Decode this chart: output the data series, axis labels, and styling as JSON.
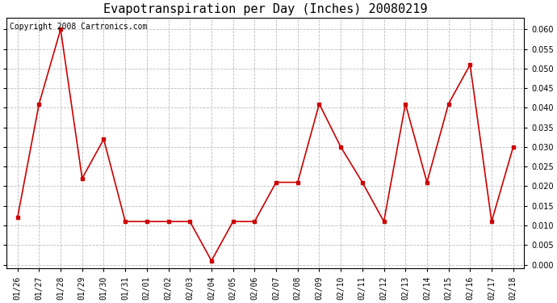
{
  "title": "Evapotranspiration per Day (Inches) 20080219",
  "copyright_text": "Copyright 2008 Cartronics.com",
  "labels": [
    "01/26",
    "01/27",
    "01/28",
    "01/29",
    "01/30",
    "01/31",
    "02/01",
    "02/02",
    "02/03",
    "02/04",
    "02/05",
    "02/06",
    "02/07",
    "02/08",
    "02/09",
    "02/10",
    "02/11",
    "02/12",
    "02/13",
    "02/14",
    "02/15",
    "02/16",
    "02/17",
    "02/18"
  ],
  "values": [
    0.012,
    0.041,
    0.06,
    0.022,
    0.032,
    0.011,
    0.011,
    0.011,
    0.011,
    0.001,
    0.011,
    0.011,
    0.021,
    0.021,
    0.041,
    0.03,
    0.021,
    0.011,
    0.041,
    0.021,
    0.041,
    0.051,
    0.011,
    0.03
  ],
  "line_color": "#cc0000",
  "marker": "s",
  "marker_size": 3,
  "marker_color": "#cc0000",
  "ylim": [
    -0.001,
    0.063
  ],
  "ytick_min": 0.0,
  "ytick_max": 0.06,
  "ytick_step": 0.005,
  "background_color": "#ffffff",
  "grid_color": "#bbbbbb",
  "title_fontsize": 11,
  "tick_fontsize": 7,
  "copyright_fontsize": 7
}
